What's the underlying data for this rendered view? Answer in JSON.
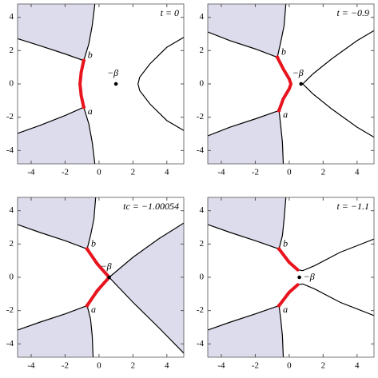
{
  "chart_data": [
    {
      "type": "region-plot",
      "title": "t = 0",
      "xlim": [
        -4.8,
        5
      ],
      "ylim": [
        -4.8,
        4.8
      ],
      "xticks": [
        -4,
        -2,
        0,
        2,
        4
      ],
      "yticks": [
        -4,
        -2,
        0,
        2,
        4
      ],
      "regions": [
        {
          "color": "#dcdcec",
          "x": [
            -0.1,
            -0.4,
            -0.6,
            -0.9,
            -2,
            -3.5,
            -6,
            -6
          ],
          "y": [
            6,
            3.5,
            2.4,
            1.4,
            1.8,
            2.3,
            3.1,
            6
          ]
        },
        {
          "color": "#dcdcec",
          "x": [
            -0.1,
            -0.4,
            -0.6,
            -0.9,
            -2,
            -3.5,
            -6,
            -6
          ],
          "y": [
            -6,
            -3.5,
            -2.4,
            -1.4,
            -1.9,
            -2.5,
            -3.4,
            -6
          ]
        }
      ],
      "curves": [
        {
          "color": "#000000",
          "x": [
            6,
            4,
            3,
            2.4,
            2.3,
            2.4,
            3,
            4,
            6
          ],
          "y": [
            3.4,
            2.2,
            1.2,
            0.4,
            0,
            -0.4,
            -1.2,
            -2.2,
            -3.4
          ]
        }
      ],
      "cuts": [
        {
          "color": "#e8141e",
          "x": [
            -0.9,
            -1.05,
            -1.12,
            -1.05,
            -0.9
          ],
          "y": [
            1.4,
            0.7,
            0,
            -0.7,
            -1.4
          ]
        }
      ],
      "points": [
        {
          "label": "−β",
          "x": 1,
          "y": 0,
          "color": "#000000",
          "anchor": "above"
        },
        {
          "label": "b",
          "x": -0.9,
          "y": 1.4,
          "color": "#e8141e",
          "anchor": "right"
        },
        {
          "label": "a",
          "x": -0.9,
          "y": -1.4,
          "color": "#e8141e",
          "anchor": "right"
        }
      ]
    },
    {
      "type": "region-plot",
      "title": "t = −0.9",
      "xlim": [
        -4.8,
        5
      ],
      "ylim": [
        -4.8,
        4.8
      ],
      "xticks": [
        -4,
        -2,
        0,
        2,
        4
      ],
      "yticks": [
        -4,
        -2,
        0,
        2,
        4
      ],
      "regions": [
        {
          "color": "#dcdcec",
          "x": [
            -0.1,
            -0.3,
            -0.5,
            -0.7,
            -2,
            -3.5,
            -6,
            -6
          ],
          "y": [
            6,
            3.5,
            2.5,
            1.6,
            2.1,
            2.6,
            3.6,
            6
          ]
        },
        {
          "color": "#dcdcec",
          "x": [
            -0.3,
            -0.4,
            -0.5,
            -0.6,
            -2,
            -3.5,
            -6,
            -6
          ],
          "y": [
            -6,
            -3.5,
            -2.5,
            -1.6,
            -2.1,
            -2.6,
            -3.6,
            -6
          ]
        }
      ],
      "curves": [
        {
          "color": "#000000",
          "x": [
            6,
            4,
            2.5,
            1.4,
            0.8,
            1.4,
            2.5,
            4,
            6
          ],
          "y": [
            3.8,
            2.6,
            1.5,
            0.6,
            0,
            -0.6,
            -1.5,
            -2.6,
            -3.8
          ]
        }
      ],
      "cuts": [
        {
          "color": "#e8141e",
          "x": [
            -0.7,
            -0.35,
            0,
            0.1,
            0,
            -0.35,
            -0.6
          ],
          "y": [
            1.6,
            0.9,
            0.3,
            0,
            -0.3,
            -0.9,
            -1.6
          ]
        }
      ],
      "points": [
        {
          "label": "−β",
          "x": 0.7,
          "y": 0,
          "color": "#000000",
          "anchor": "above"
        },
        {
          "label": "b",
          "x": -0.7,
          "y": 1.6,
          "color": "#e8141e",
          "anchor": "right"
        },
        {
          "label": "a",
          "x": -0.6,
          "y": -1.6,
          "color": "#e8141e",
          "anchor": "right"
        }
      ]
    },
    {
      "type": "region-plot",
      "title": "tc = −1.00054",
      "xlim": [
        -4.8,
        5
      ],
      "ylim": [
        -4.8,
        4.8
      ],
      "xticks": [
        -4,
        -2,
        0,
        2,
        4
      ],
      "yticks": [
        -4,
        -2,
        0,
        2,
        4
      ],
      "regions": [
        {
          "color": "#dcdcec",
          "x": [
            -0.1,
            -0.3,
            -0.5,
            -0.7,
            -2,
            -3.5,
            -6,
            -6
          ],
          "y": [
            6,
            3.5,
            2.5,
            1.7,
            2.2,
            2.7,
            3.6,
            6
          ]
        },
        {
          "color": "#dcdcec",
          "x": [
            -0.3,
            -0.4,
            -0.5,
            -0.7,
            -2,
            -3.5,
            -6,
            -6
          ],
          "y": [
            -6,
            -3.5,
            -2.5,
            -1.7,
            -2.2,
            -2.7,
            -3.6,
            -6
          ]
        },
        {
          "color": "#dcdcec",
          "x": [
            0.6,
            2,
            3.5,
            6,
            6,
            3.5,
            2,
            0.6
          ],
          "y": [
            0,
            1.2,
            2.3,
            3.9,
            -5.6,
            -3,
            -1.5,
            0
          ]
        }
      ],
      "curves": [
        {
          "color": "#000000",
          "x": [
            -0.7,
            0.6
          ],
          "y": [
            1.7,
            0
          ]
        },
        {
          "color": "#000000",
          "x": [
            -0.7,
            0.6
          ],
          "y": [
            -1.7,
            0
          ]
        }
      ],
      "cuts": [
        {
          "color": "#e8141e",
          "x": [
            -0.7,
            -0.1,
            0.6,
            -0.1,
            -0.7
          ],
          "y": [
            1.7,
            0.8,
            0,
            -0.8,
            -1.7
          ]
        }
      ],
      "points": [
        {
          "label": "−β",
          "x": 0.6,
          "y": 0,
          "color": "#000000",
          "anchor": "above"
        },
        {
          "label": "b",
          "x": -0.7,
          "y": 1.7,
          "color": "#e8141e",
          "anchor": "right"
        },
        {
          "label": "a",
          "x": -0.7,
          "y": -1.7,
          "color": "#e8141e",
          "anchor": "right"
        }
      ]
    },
    {
      "type": "region-plot",
      "title": "t = −1.1",
      "xlim": [
        -4.8,
        5
      ],
      "ylim": [
        -4.8,
        4.8
      ],
      "xticks": [
        -4,
        -2,
        0,
        2,
        4
      ],
      "yticks": [
        -4,
        -2,
        0,
        2,
        4
      ],
      "regions": [
        {
          "color": "#dcdcec",
          "x": [
            -0.1,
            -0.3,
            -0.4,
            -0.6,
            -2,
            -3.5,
            -6,
            -6
          ],
          "y": [
            6,
            3.5,
            2.5,
            1.7,
            2.2,
            2.7,
            3.6,
            6
          ]
        },
        {
          "color": "#dcdcec",
          "x": [
            -0.3,
            -0.4,
            -0.5,
            -0.6,
            -2,
            -3.5,
            -6,
            -6
          ],
          "y": [
            -6,
            -3.5,
            -2.5,
            -1.7,
            -2.2,
            -2.7,
            -3.6,
            -6
          ]
        }
      ],
      "curves": [
        {
          "color": "#000000",
          "x": [
            -0.6,
            0,
            0.5,
            0.8,
            1.5,
            3,
            6
          ],
          "y": [
            1.7,
            0.9,
            0.45,
            0.4,
            0.7,
            1.5,
            2.7
          ]
        },
        {
          "color": "#000000",
          "x": [
            -0.6,
            0,
            0.5,
            0.8,
            1.5,
            3,
            6
          ],
          "y": [
            -1.7,
            -0.9,
            -0.45,
            -0.4,
            -0.7,
            -1.5,
            -2.7
          ]
        }
      ],
      "cuts": [
        {
          "color": "#e8141e",
          "x": [
            -0.6,
            0,
            0.5
          ],
          "y": [
            1.7,
            0.9,
            0.45
          ]
        },
        {
          "color": "#e8141e",
          "x": [
            -0.6,
            0,
            0.5
          ],
          "y": [
            -1.7,
            -0.9,
            -0.45
          ]
        }
      ],
      "points": [
        {
          "label": "−β",
          "x": 0.6,
          "y": 0,
          "color": "#000000",
          "anchor": "right"
        },
        {
          "label": "b",
          "x": -0.6,
          "y": 1.7,
          "color": "#e8141e",
          "anchor": "right"
        },
        {
          "label": "a",
          "x": -0.6,
          "y": -1.7,
          "color": "#e8141e",
          "anchor": "right"
        }
      ]
    }
  ]
}
